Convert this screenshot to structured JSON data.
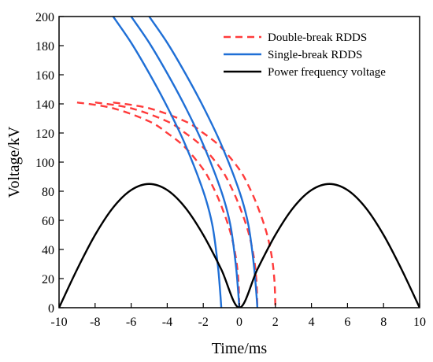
{
  "chart_data": {
    "type": "line",
    "xlabel": "Time/ms",
    "ylabel": "Voltage/kV",
    "xlim": [
      -10,
      10
    ],
    "ylim": [
      0,
      200
    ],
    "xticks": [
      -10,
      -8,
      -6,
      -4,
      -2,
      0,
      2,
      4,
      6,
      8,
      10
    ],
    "yticks": [
      0,
      20,
      40,
      60,
      80,
      100,
      120,
      140,
      160,
      180,
      200
    ],
    "legend_position": "top-right",
    "series": [
      {
        "name": "Double-break RDDS",
        "color": "#ff3b3b",
        "style": "dashed",
        "curves": [
          [
            [
              -9,
              141
            ],
            [
              -7,
              137
            ],
            [
              -5,
              128
            ],
            [
              -4,
              120
            ],
            [
              -3,
              110
            ],
            [
              -2,
              95
            ],
            [
              -1.5,
              84
            ],
            [
              -1,
              70
            ],
            [
              -0.5,
              52
            ],
            [
              -0.2,
              35
            ],
            [
              -0.05,
              18
            ],
            [
              0,
              0
            ]
          ],
          [
            [
              -8,
              141
            ],
            [
              -6,
              137
            ],
            [
              -4,
              128
            ],
            [
              -3,
              120
            ],
            [
              -2,
              110
            ],
            [
              -1,
              95
            ],
            [
              -0.5,
              84
            ],
            [
              0,
              70
            ],
            [
              0.5,
              52
            ],
            [
              0.8,
              35
            ],
            [
              0.95,
              18
            ],
            [
              1,
              0
            ]
          ],
          [
            [
              -7,
              141
            ],
            [
              -5,
              137
            ],
            [
              -3,
              128
            ],
            [
              -2,
              120
            ],
            [
              -1,
              110
            ],
            [
              0,
              95
            ],
            [
              0.5,
              84
            ],
            [
              1,
              70
            ],
            [
              1.5,
              52
            ],
            [
              1.8,
              35
            ],
            [
              1.95,
              18
            ],
            [
              2,
              0
            ]
          ]
        ]
      },
      {
        "name": "Single-break RDDS",
        "color": "#1f6fd6",
        "style": "solid",
        "curves": [
          [
            [
              -7,
              200
            ],
            [
              -6,
              182
            ],
            [
              -5,
              161
            ],
            [
              -4,
              138
            ],
            [
              -3,
              112
            ],
            [
              -2,
              80
            ],
            [
              -1.5,
              57
            ],
            [
              -1.2,
              30
            ],
            [
              -1.07,
              12
            ],
            [
              -1,
              0
            ]
          ],
          [
            [
              -6,
              200
            ],
            [
              -5,
              182
            ],
            [
              -4,
              161
            ],
            [
              -3,
              138
            ],
            [
              -2,
              112
            ],
            [
              -1,
              80
            ],
            [
              -0.5,
              57
            ],
            [
              -0.2,
              30
            ],
            [
              -0.07,
              12
            ],
            [
              0,
              0
            ]
          ],
          [
            [
              -5,
              200
            ],
            [
              -4,
              182
            ],
            [
              -3,
              161
            ],
            [
              -2,
              138
            ],
            [
              -1,
              112
            ],
            [
              0,
              80
            ],
            [
              0.5,
              57
            ],
            [
              0.8,
              30
            ],
            [
              0.93,
              12
            ],
            [
              1,
              0
            ]
          ]
        ]
      },
      {
        "name": "Power frequency voltage",
        "color": "#000000",
        "style": "solid",
        "curves": [
          [
            [
              -10,
              0
            ],
            [
              -9,
              26.3
            ],
            [
              -8,
              50
            ],
            [
              -7,
              68.8
            ],
            [
              -6,
              80.8
            ],
            [
              -5,
              85
            ],
            [
              -4,
              80.8
            ],
            [
              -3,
              68.8
            ],
            [
              -2,
              50
            ],
            [
              -1,
              26.3
            ],
            [
              0,
              0
            ],
            [
              1,
              26.3
            ],
            [
              2,
              50
            ],
            [
              3,
              68.8
            ],
            [
              4,
              80.8
            ],
            [
              5,
              85
            ],
            [
              6,
              80.8
            ],
            [
              7,
              68.8
            ],
            [
              8,
              50
            ],
            [
              9,
              26.3
            ],
            [
              10,
              0
            ]
          ]
        ]
      }
    ]
  }
}
